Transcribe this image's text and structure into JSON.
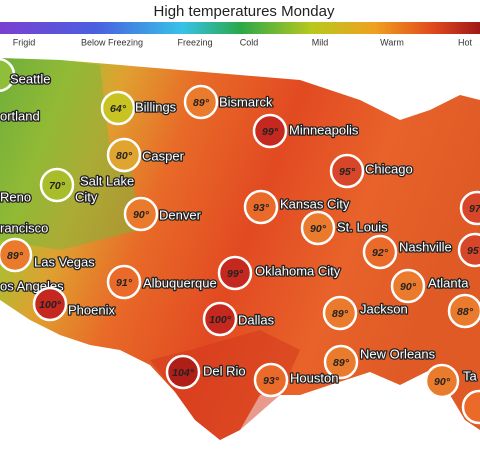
{
  "header": {
    "title": "High temperatures Monday"
  },
  "legend": {
    "labels": [
      "Frigid",
      "Below Freezing",
      "Freezing",
      "Cold",
      "Mild",
      "Warm",
      "Hot"
    ]
  },
  "cities": [
    {
      "label": "Seattle"
    },
    {
      "label": "ortland"
    },
    {
      "label": "Reno"
    },
    {
      "label": "rancisco"
    },
    {
      "label": "os Angeles"
    },
    {
      "temp": "64°",
      "label": "Billings"
    },
    {
      "temp": "89°",
      "label": "Bismarck"
    },
    {
      "temp": "99°",
      "label": "Minneapolis"
    },
    {
      "temp": "80°",
      "label": "Casper"
    },
    {
      "temp": "70°",
      "label": [
        "Salt Lake",
        "City"
      ]
    },
    {
      "temp": "95°",
      "label": "Chicago"
    },
    {
      "temp": "90°",
      "label": "Denver"
    },
    {
      "temp": "93°",
      "label": "Kansas City"
    },
    {
      "temp": "90°",
      "label": "St. Louis"
    },
    {
      "temp": "89°",
      "label": "Las Vegas"
    },
    {
      "temp": "92°",
      "label": "Nashville"
    },
    {
      "temp": "99°",
      "label": "Oklahoma City"
    },
    {
      "temp": "91°",
      "label": "Albuquerque"
    },
    {
      "temp": "90°",
      "label": "Atlanta"
    },
    {
      "temp": "100°",
      "label": "Phoenix"
    },
    {
      "temp": "89°",
      "label": "Jackson"
    },
    {
      "temp": "100°",
      "label": "Dallas"
    },
    {
      "temp": "89°",
      "label": "New Orleans"
    },
    {
      "temp": "104°",
      "label": "Del Rio"
    },
    {
      "temp": "93°",
      "label": "Houston"
    },
    {
      "temp": "90°",
      "label": "Ta"
    },
    {
      "temp": "97°"
    },
    {
      "temp": "95°"
    },
    {
      "temp": "88°"
    },
    {}
  ]
}
